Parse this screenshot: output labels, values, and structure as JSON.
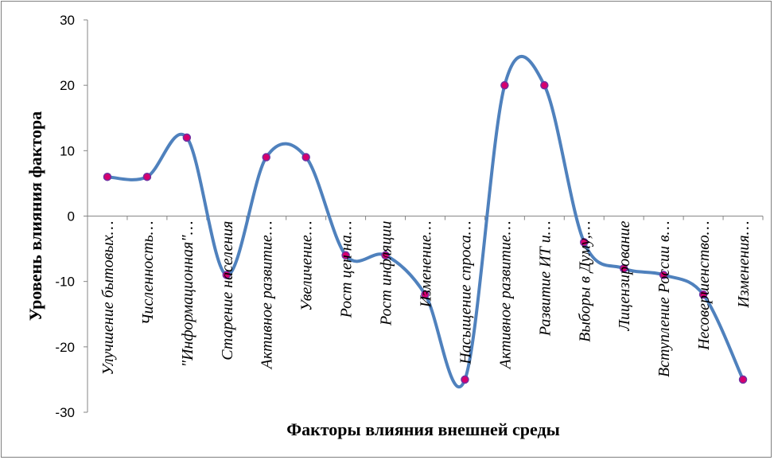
{
  "chart_data": {
    "type": "line",
    "title": "",
    "xlabel": "Факторы влияния внешней среды",
    "ylabel": "Уровень влияния фактора",
    "ylim": [
      -30,
      30
    ],
    "yticks": [
      30,
      20,
      10,
      0,
      -10,
      -20,
      -30
    ],
    "ytick_labels": [
      "30",
      "20",
      "10",
      "0",
      "-10",
      "-20",
      "-30"
    ],
    "grid": false,
    "legend": "none",
    "smooth": true,
    "categories": [
      "Улучшение бытовых…",
      "Численность…",
      "\"Информационная\"…",
      "Старение населения",
      "Активное развитие…",
      "Увеличение…",
      "Рост цен на…",
      "Рост инфляции",
      "Изменение…",
      "Насыщение спроса…",
      "Активное развитие…",
      "Развитие ИТ и…",
      "Выборы в Думу,…",
      "Лицензирование",
      "Вступление России в…",
      "Несовершенство…",
      "Изменения…"
    ],
    "series": [
      {
        "values": [
          6,
          6,
          12,
          -9,
          9,
          9,
          -6,
          -6,
          -12,
          -25,
          20,
          20,
          -4,
          -8,
          -9,
          -12,
          -25
        ]
      }
    ],
    "colors": {
      "line": "#4f81bd",
      "marker_fill": "#d6006e",
      "marker_stroke": "#7030a0",
      "axis": "#868686"
    }
  }
}
